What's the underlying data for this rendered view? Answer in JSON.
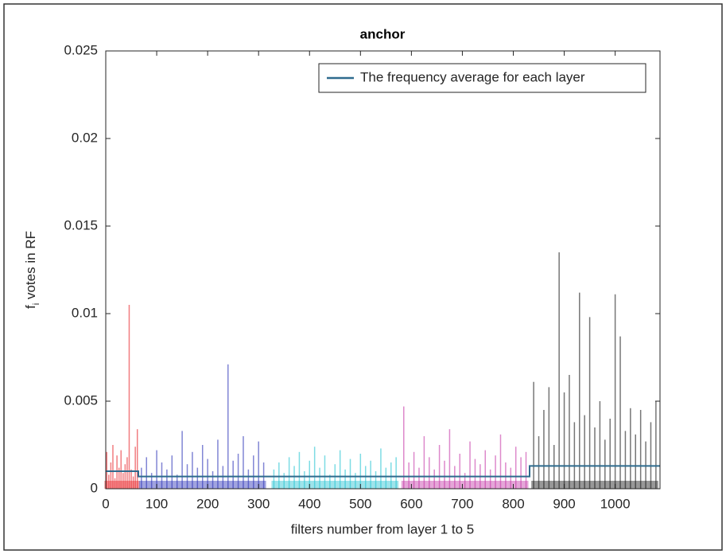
{
  "chart_data": {
    "type": "stem",
    "title": "anchor",
    "xlabel": "filters number from layer 1 to 5",
    "ylabel": {
      "main": "f",
      "sub": "i",
      "rest": " votes in RF"
    },
    "xlim": [
      0,
      1088
    ],
    "ylim": [
      0,
      0.025
    ],
    "xticks": [
      0,
      100,
      200,
      300,
      400,
      500,
      600,
      700,
      800,
      900,
      1000
    ],
    "yticks": [
      0,
      0.005,
      0.01,
      0.015,
      0.02,
      0.025
    ],
    "legend": "top-right",
    "series": [
      {
        "color": "#e8262b",
        "x": [
          2,
          6,
          10,
          14,
          18,
          22,
          26,
          30,
          34,
          38,
          42,
          46,
          50,
          54,
          58,
          62
        ],
        "values": [
          0.0021,
          0.0008,
          0.0015,
          0.0025,
          0.0006,
          0.0019,
          0.0012,
          0.0022,
          0.0009,
          0.0014,
          0.0018,
          0.0105,
          0.0011,
          0.0007,
          0.0024,
          0.0034
        ]
      },
      {
        "color": "#2d34b8",
        "x": [
          70,
          80,
          90,
          100,
          110,
          120,
          130,
          140,
          150,
          160,
          170,
          180,
          190,
          200,
          210,
          220,
          230,
          240,
          250,
          260,
          270,
          280,
          290,
          300,
          310
        ],
        "values": [
          0.0012,
          0.0018,
          0.0009,
          0.0022,
          0.0015,
          0.0011,
          0.0019,
          0.0008,
          0.0033,
          0.0014,
          0.0021,
          0.0012,
          0.0025,
          0.0017,
          0.001,
          0.0028,
          0.0013,
          0.0071,
          0.0016,
          0.002,
          0.003,
          0.0011,
          0.0019,
          0.0027,
          0.0015
        ]
      },
      {
        "color": "#27c4d2",
        "x": [
          330,
          340,
          350,
          360,
          370,
          380,
          390,
          400,
          410,
          420,
          430,
          440,
          450,
          460,
          470,
          480,
          490,
          500,
          510,
          520,
          530,
          540,
          550,
          560,
          570
        ],
        "values": [
          0.0011,
          0.0015,
          0.0009,
          0.0018,
          0.0013,
          0.0021,
          0.001,
          0.0016,
          0.0024,
          0.0012,
          0.0019,
          0.0008,
          0.0014,
          0.0022,
          0.0011,
          0.0017,
          0.0009,
          0.002,
          0.0013,
          0.0016,
          0.001,
          0.0023,
          0.0012,
          0.0015,
          0.0018
        ]
      },
      {
        "color": "#c63aa8",
        "x": [
          585,
          595,
          605,
          615,
          625,
          635,
          645,
          655,
          665,
          675,
          685,
          695,
          705,
          715,
          725,
          735,
          745,
          755,
          765,
          775,
          785,
          795,
          805,
          815,
          825
        ],
        "values": [
          0.0047,
          0.0015,
          0.0021,
          0.0012,
          0.003,
          0.0018,
          0.0011,
          0.0025,
          0.0016,
          0.0034,
          0.0013,
          0.002,
          0.0009,
          0.0027,
          0.0017,
          0.0014,
          0.0022,
          0.0011,
          0.0019,
          0.0031,
          0.0015,
          0.0012,
          0.0024,
          0.0018,
          0.0021
        ]
      },
      {
        "color": "#1a1a1a",
        "x": [
          840,
          850,
          860,
          870,
          880,
          890,
          900,
          910,
          920,
          930,
          940,
          950,
          960,
          970,
          980,
          990,
          1000,
          1010,
          1020,
          1030,
          1040,
          1050,
          1060,
          1070,
          1080
        ],
        "values": [
          0.0061,
          0.003,
          0.0045,
          0.0058,
          0.0025,
          0.0135,
          0.0055,
          0.0065,
          0.0038,
          0.0112,
          0.0042,
          0.0098,
          0.0035,
          0.005,
          0.0028,
          0.004,
          0.0111,
          0.0087,
          0.0033,
          0.0046,
          0.0031,
          0.0045,
          0.0027,
          0.0038,
          0.005
        ]
      },
      {
        "name": "The frequency average for each layer",
        "type": "line",
        "color": "#2f6b8e",
        "x": [
          0,
          64,
          64,
          320,
          320,
          576,
          576,
          832,
          832,
          1088
        ],
        "values": [
          0.001,
          0.001,
          0.0007,
          0.0007,
          0.0007,
          0.0007,
          0.0007,
          0.0007,
          0.0013,
          0.0013
        ]
      }
    ]
  }
}
